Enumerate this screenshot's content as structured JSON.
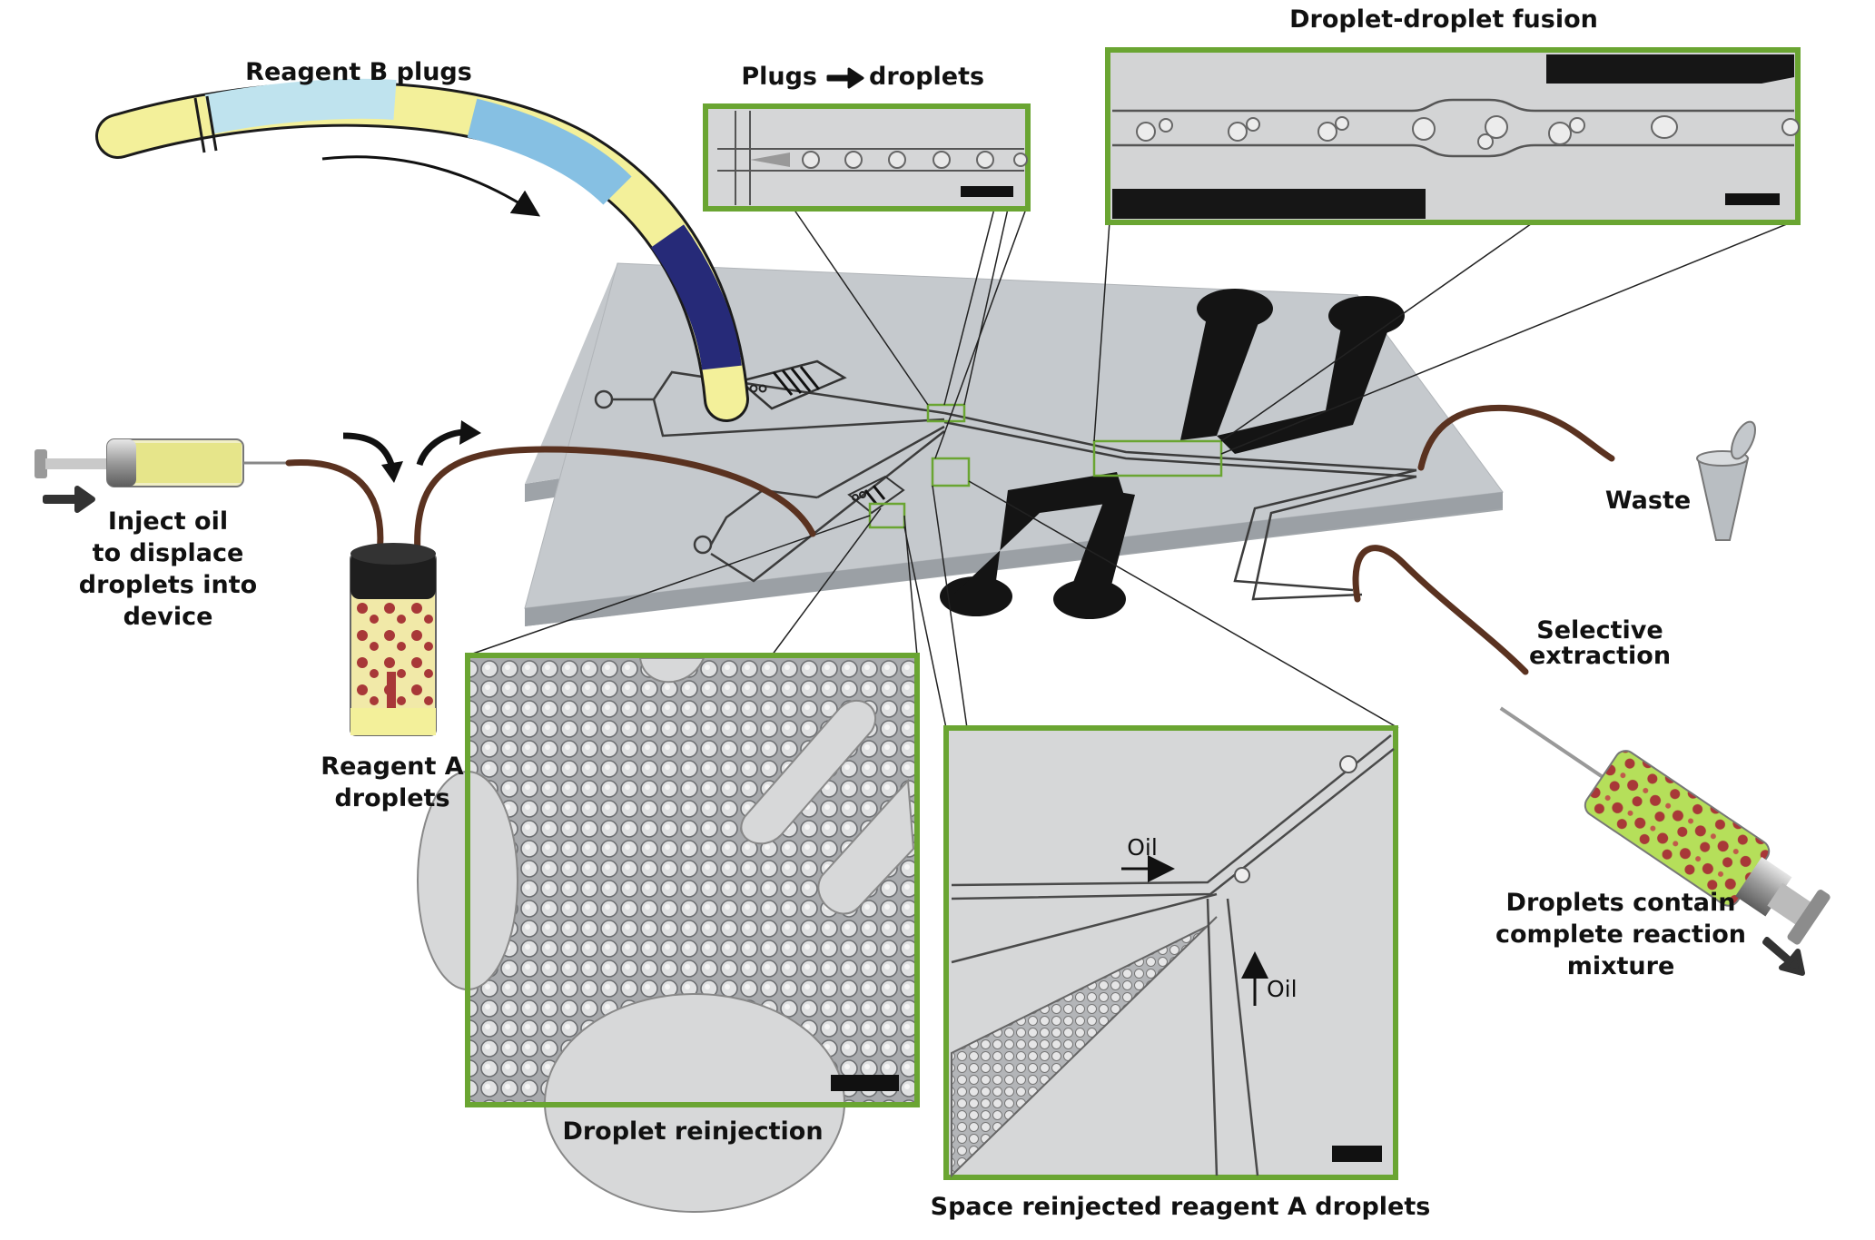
{
  "labels": {
    "reagent_b_plugs": "Reagent B plugs",
    "plugs": "Plugs",
    "droplets": "droplets",
    "droplet_fusion": "Droplet-droplet fusion",
    "inject_oil": [
      "Inject oil",
      "to displace",
      "droplets into",
      "device"
    ],
    "reagent_a": [
      "Reagent A",
      "droplets"
    ],
    "waste": "Waste",
    "selective_extraction": [
      "Selective",
      "extraction"
    ],
    "droplets_contain": [
      "Droplets contain",
      "complete reaction",
      "mixture"
    ],
    "droplet_reinjection": "Droplet reinjection",
    "space_reinjected": "Space reinjected reagent A droplets",
    "oil_1": "Oil",
    "oil_2": "Oil"
  },
  "colors": {
    "inset_border": "#6aa532",
    "chip": "#c4c8cc",
    "chip_side": "#9ea3a8",
    "tube": "#5a3220",
    "channel": "#141414",
    "plug_yellow": "#f3f09a",
    "plug_lightblue": "#bfe3ee",
    "plug_blue": "#86c0e3",
    "plug_navy": "#262a78",
    "syringe_green": "#b5df5a",
    "droplet_red": "#a83838"
  }
}
